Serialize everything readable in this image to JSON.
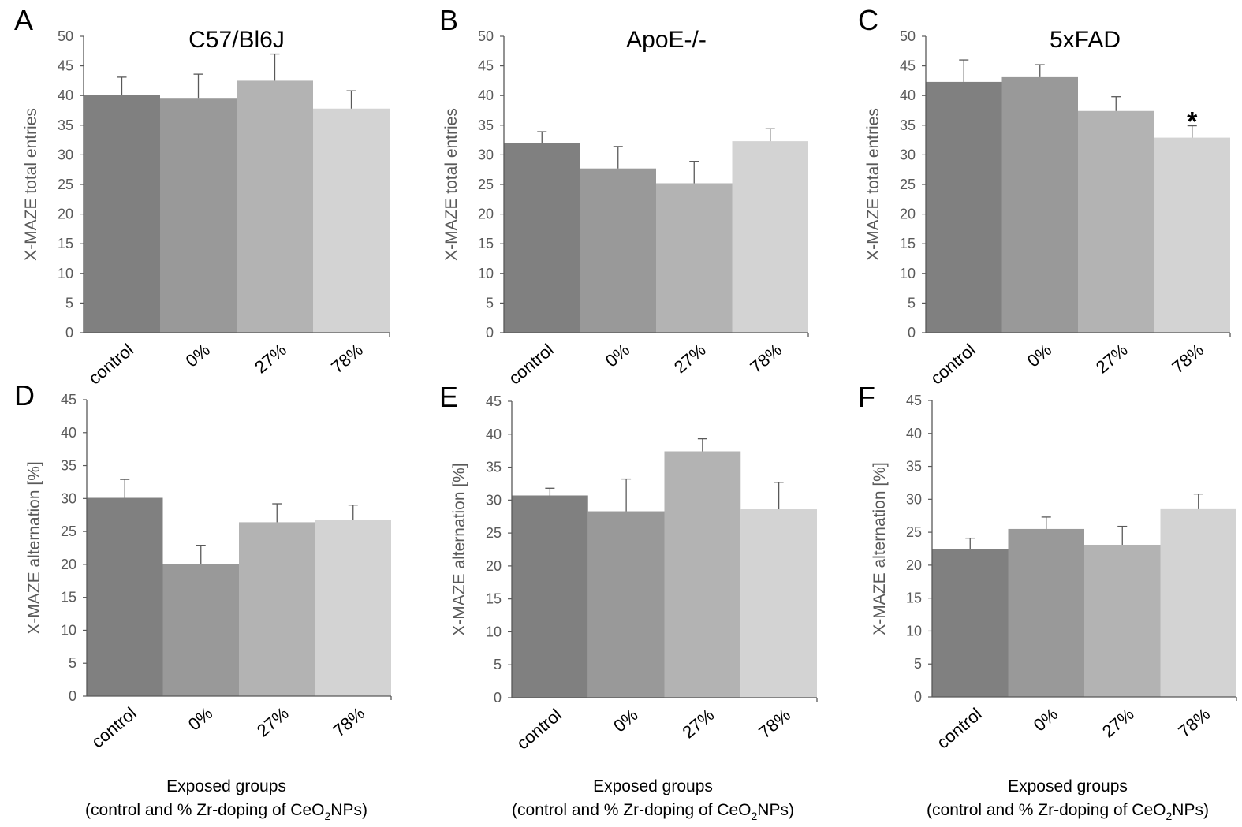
{
  "colors": [
    "#808080",
    "#999999",
    "#b3b3b3",
    "#d3d3d3"
  ],
  "x_axis_caption": {
    "line1": "Exposed groups",
    "line2_pre": "(control and % Zr-doping of CeO",
    "line2_sub": "2",
    "line2_post": "NPs)"
  },
  "chart_data": [
    {
      "panel": "A",
      "type": "bar",
      "title": "C57/Bl6J",
      "ylabel": "X-MAZE total entries",
      "ylim": [
        0,
        50
      ],
      "yticks": [
        0,
        5,
        10,
        15,
        20,
        25,
        30,
        35,
        40,
        45,
        50
      ],
      "categories": [
        "control",
        "0%",
        "27%",
        "78%"
      ],
      "values": [
        40.1,
        39.6,
        42.5,
        37.8
      ],
      "errors": [
        3.0,
        4.0,
        4.5,
        3.0
      ],
      "significance": [
        "",
        "",
        "",
        ""
      ]
    },
    {
      "panel": "B",
      "type": "bar",
      "title": "ApoE-/-",
      "ylabel": "X-MAZE total entries",
      "ylim": [
        0,
        50
      ],
      "yticks": [
        0,
        5,
        10,
        15,
        20,
        25,
        30,
        35,
        40,
        45,
        50
      ],
      "categories": [
        "control",
        "0%",
        "27%",
        "78%"
      ],
      "values": [
        32.0,
        27.7,
        25.2,
        32.3
      ],
      "errors": [
        1.9,
        3.7,
        3.7,
        2.1
      ],
      "significance": [
        "",
        "",
        "",
        ""
      ]
    },
    {
      "panel": "C",
      "type": "bar",
      "title": "5xFAD",
      "ylabel": "X-MAZE total entries",
      "ylim": [
        0,
        50
      ],
      "yticks": [
        0,
        5,
        10,
        15,
        20,
        25,
        30,
        35,
        40,
        45,
        50
      ],
      "categories": [
        "control",
        "0%",
        "27%",
        "78%"
      ],
      "values": [
        42.3,
        43.1,
        37.4,
        32.9
      ],
      "errors": [
        3.7,
        2.1,
        2.4,
        2.0
      ],
      "significance": [
        "",
        "",
        "",
        "*"
      ]
    },
    {
      "panel": "D",
      "type": "bar",
      "title": "",
      "ylabel": "X-MAZE alternation [%]",
      "ylim": [
        0,
        45
      ],
      "yticks": [
        0,
        5,
        10,
        15,
        20,
        25,
        30,
        35,
        40,
        45
      ],
      "categories": [
        "control",
        "0%",
        "27%",
        "78%"
      ],
      "values": [
        30.1,
        20.1,
        26.4,
        26.8
      ],
      "errors": [
        2.8,
        2.8,
        2.8,
        2.2
      ],
      "significance": [
        "",
        "",
        "",
        ""
      ]
    },
    {
      "panel": "E",
      "type": "bar",
      "title": "",
      "ylabel": "X-MAZE alternation [%]",
      "ylim": [
        0,
        45
      ],
      "yticks": [
        0,
        5,
        10,
        15,
        20,
        25,
        30,
        35,
        40,
        45
      ],
      "categories": [
        "control",
        "0%",
        "27%",
        "78%"
      ],
      "values": [
        30.7,
        28.3,
        37.4,
        28.6
      ],
      "errors": [
        1.1,
        4.9,
        1.9,
        4.1
      ],
      "significance": [
        "",
        "",
        "",
        ""
      ]
    },
    {
      "panel": "F",
      "type": "bar",
      "title": "",
      "ylabel": "X-MAZE alternation [%]",
      "ylim": [
        0,
        45
      ],
      "yticks": [
        0,
        5,
        10,
        15,
        20,
        25,
        30,
        35,
        40,
        45
      ],
      "categories": [
        "control",
        "0%",
        "27%",
        "78%"
      ],
      "values": [
        22.5,
        25.5,
        23.1,
        28.5
      ],
      "errors": [
        1.6,
        1.8,
        2.8,
        2.3
      ],
      "significance": [
        "",
        "",
        "",
        ""
      ]
    }
  ]
}
